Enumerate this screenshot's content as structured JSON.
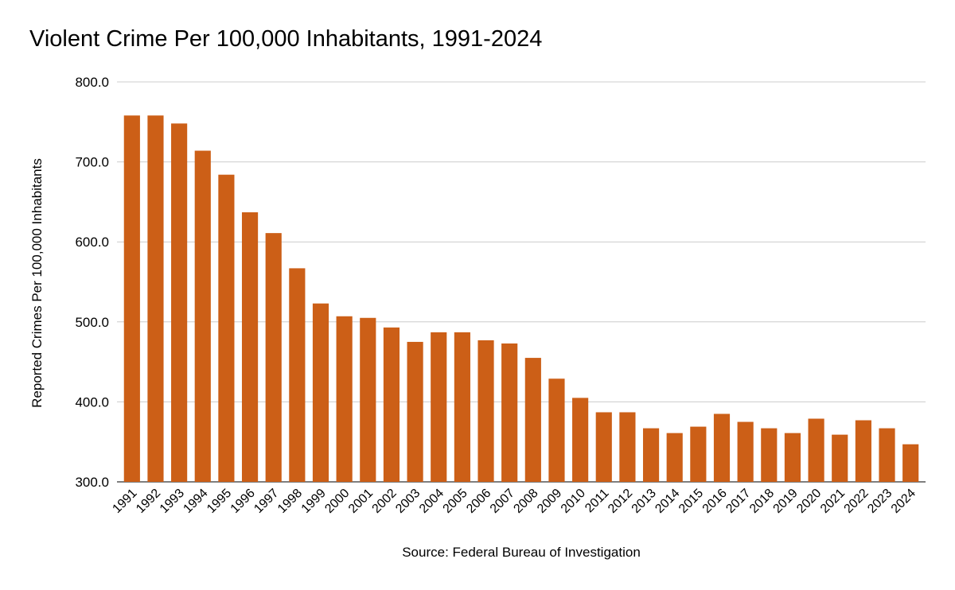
{
  "chart_data": {
    "type": "bar",
    "title": "Violent Crime Per 100,000 Inhabitants, 1991-2024",
    "xlabel": "Source: Federal Bureau of Investigation",
    "ylabel": "Reported Crimes Per 100,000 Inhabitants",
    "ylim": [
      300,
      800
    ],
    "yticks": [
      "300.0",
      "400.0",
      "500.0",
      "600.0",
      "700.0",
      "800.0"
    ],
    "grid": true,
    "legend": "none",
    "bar_color": "#cc5f17",
    "grid_color": "#cccccc",
    "categories": [
      "1991",
      "1992",
      "1993",
      "1994",
      "1995",
      "1996",
      "1997",
      "1998",
      "1999",
      "2000",
      "2001",
      "2002",
      "2003",
      "2004",
      "2005",
      "2006",
      "2007",
      "2008",
      "2009",
      "2010",
      "2011",
      "2012",
      "2013",
      "2014",
      "2015",
      "2016",
      "2017",
      "2018",
      "2019",
      "2020",
      "2021",
      "2022",
      "2023",
      "2024"
    ],
    "values": [
      758,
      758,
      748,
      714,
      684,
      637,
      611,
      567,
      523,
      507,
      505,
      493,
      475,
      487,
      487,
      477,
      473,
      455,
      429,
      405,
      387,
      387,
      367,
      361,
      369,
      385,
      375,
      367,
      361,
      379,
      359,
      377,
      367,
      347
    ]
  }
}
